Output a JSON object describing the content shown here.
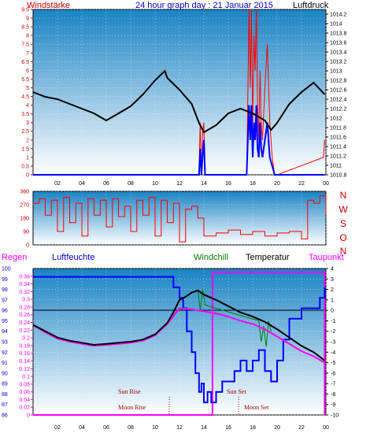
{
  "header": {
    "left_label": "Windstärke",
    "title": "24 hour graph day : 21 Januar 2015",
    "right_label": "Luftdruck"
  },
  "colors": {
    "plot_top": "#1a83c4",
    "plot_bottom": "#ffffff",
    "wind": "#ff0000",
    "pressure": "#000000",
    "gust": "#0000ff",
    "humidity": "#0000ff",
    "temperature": "#000000",
    "dewpoint": "#ff00ff",
    "windchill": "#008000",
    "rain": "#ff00ff",
    "axis_red": "#cc0000",
    "axis_blue": "#0000cc",
    "moon": "#990000"
  },
  "chart_data": [
    {
      "type": "line",
      "name": "wind-pressure",
      "x_ticks": [
        "02",
        "04",
        "06",
        "08",
        "10",
        "12",
        "14",
        "16",
        "18",
        "20",
        "22",
        "00"
      ],
      "left_axis": {
        "label": "Windstärke",
        "ticks": [
          "0",
          "0.5",
          "1",
          "1.5",
          "2",
          "2.5",
          "3",
          "3.5",
          "4",
          "4.5",
          "5",
          "5.5",
          "6",
          "6.5",
          "7",
          "7.5",
          "8",
          "8.5",
          "9",
          "9.5"
        ],
        "range": [
          0,
          9.5
        ]
      },
      "right_axis": {
        "label": "Luftdruck",
        "ticks": [
          "1010.8",
          "1011",
          "1011.2",
          "1011.4",
          "1011.6",
          "1011.8",
          "1012",
          "1012.2",
          "1012.4",
          "1012.6",
          "1012.8",
          "1013",
          "1013.2",
          "1013.4",
          "1013.6",
          "1013.8",
          "1014",
          "1014.2"
        ],
        "range": [
          1010.8,
          1014.3
        ]
      },
      "pressure": {
        "x": [
          0,
          1,
          2,
          3,
          4,
          5,
          6,
          7,
          8,
          9,
          10,
          10.8,
          11,
          12,
          13,
          13.6,
          14,
          15,
          16,
          17,
          18,
          19,
          19.5,
          20,
          21,
          22,
          23,
          23.9
        ],
        "y": [
          1012.55,
          1012.45,
          1012.4,
          1012.3,
          1012.2,
          1012.1,
          1011.95,
          1012.1,
          1012.25,
          1012.5,
          1012.8,
          1013.0,
          1012.85,
          1012.6,
          1012.3,
          1011.9,
          1011.7,
          1011.85,
          1012.1,
          1012.2,
          1012.1,
          1011.95,
          1011.75,
          1011.9,
          1012.3,
          1012.55,
          1012.75,
          1012.5
        ]
      },
      "wind": {
        "x": [
          0,
          13.6,
          13.7,
          13.8,
          13.9,
          14.0,
          14.1,
          17.5,
          17.6,
          17.7,
          17.8,
          17.9,
          18.0,
          18.1,
          18.2,
          18.3,
          18.4,
          18.5,
          18.6,
          18.7,
          18.8,
          19.0,
          19.2,
          19.4,
          19.6,
          19.8,
          20.0,
          23.8,
          23.9
        ],
        "y": [
          0,
          0,
          3,
          0,
          2.5,
          3,
          0,
          0,
          4.5,
          9.5,
          5,
          9.5,
          3,
          8,
          6,
          9.5,
          4,
          2,
          6,
          3,
          2,
          5,
          7.5,
          3,
          1,
          0,
          0,
          1,
          2
        ]
      },
      "gust": {
        "x": [
          0,
          13.6,
          13.7,
          13.8,
          13.9,
          14.0,
          14.1,
          17.5,
          17.6,
          17.7,
          17.8,
          17.9,
          18.0,
          18.1,
          18.2,
          18.3,
          18.4,
          18.5,
          18.6,
          18.7,
          18.8,
          19.0,
          19.2,
          19.4,
          19.6,
          19.8,
          20.0,
          23.9
        ],
        "y": [
          0,
          0,
          1.5,
          0,
          1.2,
          2,
          0,
          0,
          2,
          4,
          2,
          4,
          1,
          3,
          2,
          4,
          1.5,
          1,
          3,
          1.5,
          1,
          2,
          3,
          1,
          0.5,
          0,
          0,
          0
        ]
      }
    },
    {
      "type": "line",
      "name": "wind-direction",
      "left_axis": {
        "ticks": [
          "0",
          "90",
          "180",
          "270",
          "360"
        ],
        "range": [
          0,
          360
        ]
      },
      "right_axis": {
        "ticks": [
          "N",
          "W",
          "S",
          "O",
          "N"
        ]
      },
      "direction": {
        "x": [
          0,
          0.5,
          1,
          1.5,
          2,
          2.5,
          3,
          3.5,
          4,
          4.5,
          5,
          5.5,
          6,
          6.5,
          7,
          7.5,
          8,
          8.5,
          9,
          9.5,
          10,
          10.5,
          11,
          11.5,
          12,
          12.5,
          13,
          13.5,
          14,
          15,
          16,
          17,
          18,
          19,
          20,
          21,
          22,
          22.5,
          23,
          23.5,
          24
        ],
        "y": [
          280,
          310,
          200,
          300,
          90,
          320,
          150,
          280,
          60,
          310,
          200,
          300,
          120,
          310,
          190,
          260,
          90,
          300,
          200,
          320,
          60,
          300,
          150,
          280,
          20,
          240,
          260,
          180,
          60,
          80,
          100,
          70,
          90,
          60,
          80,
          90,
          40,
          300,
          280,
          330,
          200
        ]
      }
    },
    {
      "type": "line",
      "name": "temperature-humidity",
      "header": {
        "rain": "Regen",
        "humidity": "Luftfeuchte",
        "windchill": "Windchill",
        "temperature": "Temperatur",
        "dewpoint": "Taupunkt"
      },
      "humidity_axis": {
        "ticks": [
          "86",
          "87",
          "88",
          "89",
          "90",
          "91",
          "92",
          "93",
          "94",
          "95",
          "96",
          "97",
          "98",
          "99",
          "100"
        ],
        "range": [
          86,
          100
        ]
      },
      "rain_axis": {
        "ticks": [
          "0",
          "0.02",
          "0.04",
          "0.06",
          "0.08",
          "0.1",
          "0.12",
          "0.14",
          "0.16",
          "0.18",
          "0.2",
          "0.22",
          "0.24",
          "0.26",
          "0.28",
          "0.3",
          "0.32",
          "0.34",
          "0.36"
        ],
        "range": [
          0,
          0.38
        ]
      },
      "temp_axis": {
        "ticks": [
          "-10",
          "-9",
          "-8",
          "-7",
          "-6",
          "-5",
          "-4",
          "-3",
          "-2",
          "-1",
          "0",
          "1",
          "2",
          "3",
          "4"
        ],
        "range": [
          -10,
          4
        ]
      },
      "temperature": {
        "x": [
          0,
          1,
          2,
          3,
          4,
          5,
          6,
          7,
          8,
          9,
          10,
          11,
          11.5,
          12,
          12.5,
          13,
          13.5,
          14,
          15,
          16,
          17,
          18,
          19,
          20,
          21,
          22,
          23,
          23.9
        ],
        "y": [
          -1.4,
          -2.0,
          -2.6,
          -2.9,
          -3.1,
          -3.3,
          -3.2,
          -3.1,
          -3.0,
          -2.8,
          -2.3,
          -1.2,
          -0.2,
          1.0,
          1.3,
          1.7,
          1.9,
          1.5,
          1.0,
          0.4,
          -0.2,
          -0.6,
          -1.1,
          -1.8,
          -2.6,
          -3.4,
          -4.0,
          -4.8
        ]
      },
      "dewpoint": {
        "x": [
          0,
          1,
          2,
          3,
          4,
          5,
          6,
          7,
          8,
          9,
          10,
          11,
          12,
          13,
          14,
          15,
          16,
          17,
          18,
          19,
          20,
          21,
          22,
          23,
          23.9
        ],
        "y": [
          -1.4,
          -2.1,
          -2.7,
          -3.0,
          -3.2,
          -3.4,
          -3.3,
          -3.2,
          -3.1,
          -2.9,
          -2.4,
          -1.3,
          0.2,
          0.1,
          -0.1,
          -0.3,
          -0.6,
          -1.0,
          -1.3,
          -1.8,
          -2.5,
          -3.2,
          -3.9,
          -4.4,
          -5.0
        ]
      },
      "humidity": {
        "x": [
          0,
          11,
          11.5,
          12,
          12.3,
          12.6,
          13,
          13.3,
          13.6,
          13.8,
          14,
          14.3,
          14.6,
          15,
          15.5,
          16,
          16.5,
          17,
          17.5,
          18,
          18.5,
          19,
          19.5,
          20,
          20.5,
          21,
          21.5,
          22,
          22.5,
          23,
          23.5,
          23.9
        ],
        "y": [
          99.2,
          99.2,
          98.2,
          97.2,
          96.2,
          94.0,
          92.0,
          90.0,
          88.2,
          89.0,
          87.2,
          88.2,
          87.2,
          88.2,
          89.2,
          89.2,
          90.2,
          91.2,
          90.2,
          91.2,
          92.2,
          90.2,
          89.2,
          91.2,
          93.2,
          95.2,
          95.2,
          96.2,
          96.2,
          96.2,
          97.2,
          98.2
        ]
      },
      "windchill": {
        "x": [
          13.5,
          13.7,
          13.9,
          14.1,
          18.5,
          18.7,
          18.9,
          19.1,
          19.3,
          19.5
        ],
        "y": [
          2.0,
          0.0,
          2.0,
          0.5,
          -1.0,
          -3.0,
          -1.5,
          -3.5,
          -1.0,
          -2.0
        ]
      },
      "rain": {
        "x": [
          0,
          14.7,
          14.7,
          23.9,
          23.9
        ],
        "y": [
          0,
          0,
          0.37,
          0.37,
          0
        ]
      },
      "sun_labels": {
        "sunrise": "Sun Rise",
        "sunset": "Sun Set"
      },
      "moon_labels": {
        "moonrise": "Moon Rise",
        "moonset": "Moon Set"
      }
    }
  ]
}
